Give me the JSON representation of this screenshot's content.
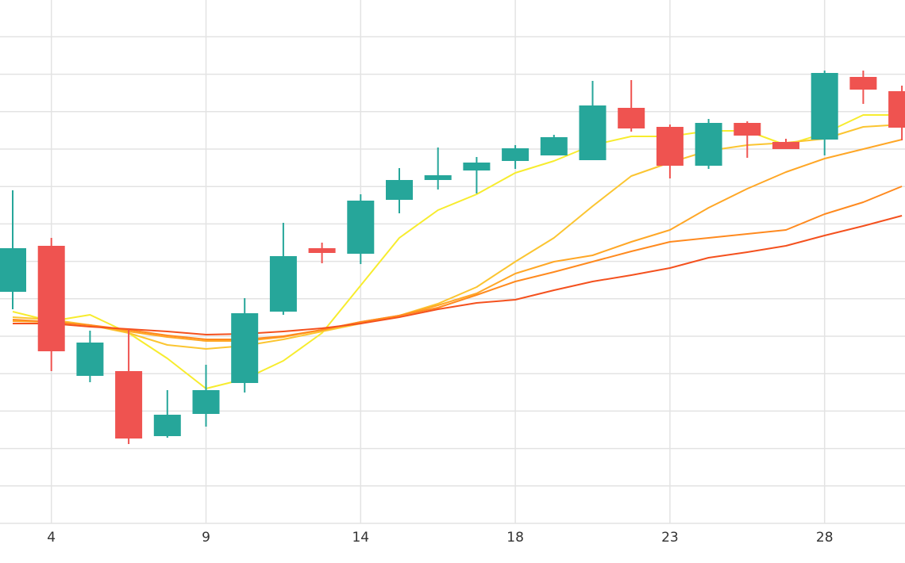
{
  "chart_data": {
    "type": "candlestick",
    "categories": [
      null,
      "4",
      null,
      null,
      null,
      "9",
      null,
      null,
      null,
      "14",
      null,
      null,
      null,
      "18",
      null,
      null,
      null,
      "23",
      null,
      null,
      null,
      "28",
      null,
      null
    ],
    "open": [
      292,
      350,
      186,
      192,
      110,
      138,
      177,
      267,
      347,
      340,
      408,
      433,
      445,
      457,
      464,
      458,
      524,
      500,
      451,
      505,
      481,
      484,
      563,
      545
    ],
    "high": [
      420,
      360,
      243,
      245,
      168,
      200,
      284,
      379,
      354,
      415,
      448,
      474,
      462,
      477,
      490,
      558,
      559,
      503,
      510,
      507,
      485,
      571,
      571,
      552
    ],
    "low": [
      270,
      192,
      178,
      100,
      108,
      122,
      165,
      263,
      328,
      327,
      391,
      421,
      416,
      447,
      464,
      458,
      494,
      435,
      447,
      461,
      472,
      464,
      529,
      483
    ],
    "close": [
      347,
      217,
      228,
      107,
      137,
      168,
      265,
      337,
      341,
      407,
      433,
      439,
      455,
      473,
      487,
      527,
      498,
      451,
      505,
      489,
      472,
      568,
      547,
      499
    ],
    "up_color": "#26a69a",
    "down_color": "#ef5350",
    "lines": [
      {
        "color": "#f7ec2e",
        "values": [
          267,
          255,
          263,
          240,
          208,
          170,
          182,
          205,
          240,
          300,
          360,
          395,
          415,
          442,
          457,
          477,
          488,
          488,
          495,
          495,
          477,
          492,
          515,
          515
        ]
      },
      {
        "color": "#fbc531",
        "values": [
          260,
          257,
          250,
          240,
          225,
          220,
          224,
          232,
          242,
          252,
          262,
          277,
          298,
          330,
          360,
          400,
          438,
          455,
          470,
          477,
          480,
          485,
          500,
          503
        ]
      },
      {
        "color": "#ffa726",
        "values": [
          255,
          254,
          250,
          242,
          235,
          230,
          230,
          235,
          244,
          254,
          262,
          275,
          290,
          315,
          330,
          338,
          355,
          370,
          398,
          422,
          443,
          460,
          472,
          484
        ]
      },
      {
        "color": "#ff8a1f",
        "values": [
          257,
          254,
          250,
          244,
          237,
          232,
          232,
          236,
          244,
          254,
          262,
          272,
          288,
          305,
          317,
          330,
          343,
          355,
          360,
          365,
          370,
          390,
          405,
          425
        ]
      },
      {
        "color": "#f4511e",
        "values": [
          252,
          252,
          248,
          245,
          242,
          238,
          239,
          242,
          246,
          252,
          260,
          270,
          278,
          282,
          294,
          305,
          313,
          322,
          335,
          342,
          350,
          363,
          375,
          388
        ]
      }
    ],
    "ylim": [
      0,
      660
    ],
    "yticks": [
      0,
      47.2,
      94.4,
      141.6,
      188.8,
      236,
      283.2,
      330.4,
      377.6,
      424.8,
      472,
      519.2,
      566.4,
      613.6
    ],
    "grid": true
  }
}
